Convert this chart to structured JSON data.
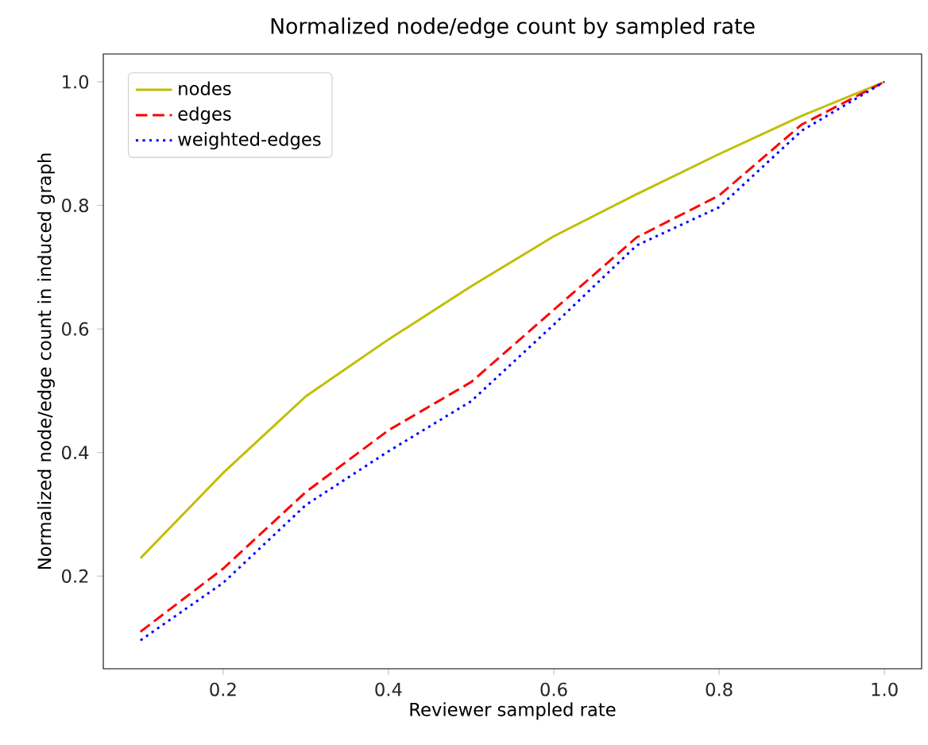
{
  "chart_data": {
    "type": "line",
    "title": "Normalized node/edge count by sampled rate",
    "xlabel": "Reviewer sampled rate",
    "ylabel": "Normalized node/edge count in induced graph",
    "x": [
      0.1,
      0.2,
      0.3,
      0.4,
      0.5,
      0.6,
      0.7,
      0.8,
      0.9,
      1.0
    ],
    "series": [
      {
        "name": "nodes",
        "color": "#bfbf00",
        "line_style": "solid",
        "values": [
          0.229,
          0.367,
          0.491,
          0.583,
          0.669,
          0.75,
          0.818,
          0.883,
          0.945,
          1.0
        ]
      },
      {
        "name": "edges",
        "color": "#ff0000",
        "line_style": "dashed",
        "values": [
          0.11,
          0.212,
          0.336,
          0.436,
          0.514,
          0.631,
          0.748,
          0.816,
          0.931,
          1.0
        ]
      },
      {
        "name": "weighted-edges",
        "color": "#0000ff",
        "line_style": "dotted",
        "values": [
          0.096,
          0.189,
          0.315,
          0.402,
          0.483,
          0.607,
          0.735,
          0.797,
          0.921,
          1.0
        ]
      }
    ],
    "xlim": [
      0.055,
      1.045
    ],
    "ylim": [
      0.05,
      1.045
    ],
    "xticks": [
      0.2,
      0.4,
      0.6,
      0.8,
      {
        "value": 1.0,
        "label": "1.0"
      }
    ],
    "yticks": [
      0.2,
      0.4,
      0.6,
      0.8,
      {
        "value": 1.0,
        "label": "1.0"
      }
    ],
    "grid": false,
    "legend": "top left",
    "marker": "none"
  }
}
